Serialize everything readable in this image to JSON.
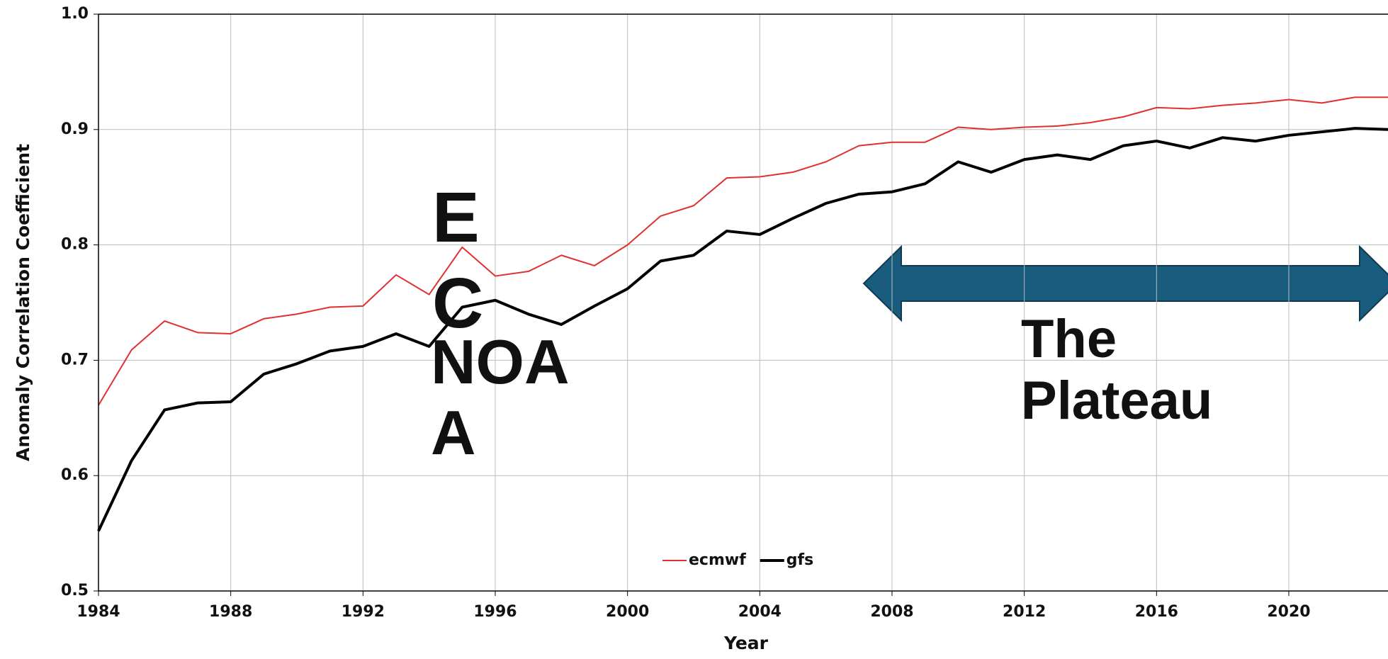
{
  "chart_data": {
    "type": "line",
    "x_label": "Year",
    "y_label": "Anomaly Correlation Coefficient",
    "x": [
      1984,
      1985,
      1986,
      1987,
      1988,
      1989,
      1990,
      1991,
      1992,
      1993,
      1994,
      1995,
      1996,
      1997,
      1998,
      1999,
      2000,
      2001,
      2002,
      2003,
      2004,
      2005,
      2006,
      2007,
      2008,
      2009,
      2010,
      2011,
      2012,
      2013,
      2014,
      2015,
      2016,
      2017,
      2018,
      2019,
      2020,
      2021,
      2022,
      2023
    ],
    "series": [
      {
        "name": "ecmwf",
        "color": "#e03030",
        "width": 2,
        "values": [
          0.661,
          0.709,
          0.734,
          0.724,
          0.723,
          0.736,
          0.74,
          0.746,
          0.747,
          0.774,
          0.757,
          0.798,
          0.773,
          0.777,
          0.791,
          0.782,
          0.8,
          0.825,
          0.834,
          0.858,
          0.859,
          0.863,
          0.872,
          0.886,
          0.889,
          0.889,
          0.902,
          0.9,
          0.902,
          0.903,
          0.906,
          0.911,
          0.919,
          0.918,
          0.921,
          0.923,
          0.926,
          0.923,
          0.928,
          0.928
        ]
      },
      {
        "name": "gfs",
        "color": "#000000",
        "width": 4,
        "values": [
          0.552,
          0.613,
          0.657,
          0.663,
          0.664,
          0.688,
          0.697,
          0.708,
          0.712,
          0.723,
          0.712,
          0.746,
          0.752,
          0.74,
          0.731,
          0.747,
          0.762,
          0.786,
          0.791,
          0.812,
          0.809,
          0.823,
          0.836,
          0.844,
          0.846,
          0.853,
          0.872,
          0.863,
          0.874,
          0.878,
          0.874,
          0.886,
          0.89,
          0.884,
          0.893,
          0.89,
          0.895,
          0.898,
          0.901,
          0.9
        ]
      }
    ],
    "xlim": [
      1984,
      2023
    ],
    "xticks": [
      1984,
      1988,
      1992,
      1996,
      2000,
      2004,
      2008,
      2012,
      2016,
      2020
    ],
    "ylim": [
      0.5,
      1.0
    ],
    "yticks": [
      {
        "value": 0.5,
        "label": "0.5"
      },
      0.6,
      0.7,
      0.8,
      0.9,
      {
        "value": 1.0,
        "label": "1.0"
      }
    ],
    "grid": true,
    "legend": "bottom-center",
    "annotations": [
      {
        "lines": [
          "E",
          "C"
        ],
        "color": "#ff0000"
      },
      {
        "lines": [
          "NOA",
          "A"
        ],
        "color": "#000000"
      },
      {
        "lines": [
          "The",
          "Plateau"
        ],
        "color": "#000000"
      }
    ]
  }
}
